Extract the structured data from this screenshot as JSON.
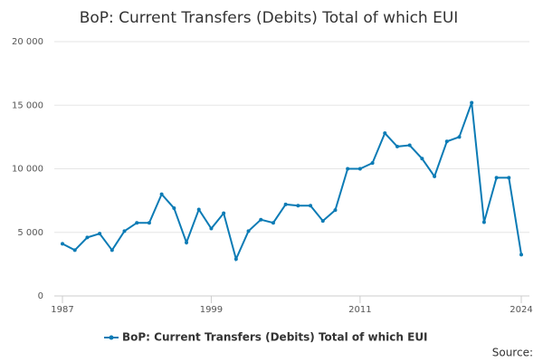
{
  "chart_data": {
    "type": "line",
    "title": "BoP: Current Transfers (Debits) Total of which EUI",
    "x": [
      1987,
      1988,
      1989,
      1990,
      1991,
      1992,
      1993,
      1994,
      1995,
      1996,
      1997,
      1998,
      1999,
      2000,
      2001,
      2002,
      2003,
      2004,
      2005,
      2006,
      2007,
      2008,
      2009,
      2010,
      2011,
      2012,
      2013,
      2014,
      2015,
      2016,
      2017,
      2018,
      2019,
      2020,
      2021,
      2022,
      2023,
      2024
    ],
    "series": [
      {
        "name": "BoP: Current Transfers (Debits) Total of which EUI",
        "color": "#0b7bb5",
        "values": [
          4100,
          3600,
          4600,
          4900,
          3600,
          5100,
          5750,
          5750,
          8000,
          6900,
          4200,
          6800,
          5300,
          6500,
          2900,
          5100,
          6000,
          5750,
          7200,
          7100,
          7100,
          5900,
          6750,
          10000,
          10000,
          10450,
          12800,
          11750,
          11850,
          10800,
          9400,
          12150,
          12500,
          15200,
          5800,
          9300,
          9300,
          3250
        ]
      }
    ],
    "xlim": [
      1987,
      2024
    ],
    "xticks": [
      1987,
      1999,
      2011,
      2024
    ],
    "ylim": [
      0,
      20000
    ],
    "yticks": [
      0,
      {
        "value": 5000,
        "label": "5 000"
      },
      {
        "value": 10000,
        "label": "10 000"
      },
      {
        "value": 15000,
        "label": "15 000"
      },
      {
        "value": 20000,
        "label": "20 000"
      }
    ],
    "grid": true,
    "legend": "bottom",
    "source": "Source:"
  }
}
